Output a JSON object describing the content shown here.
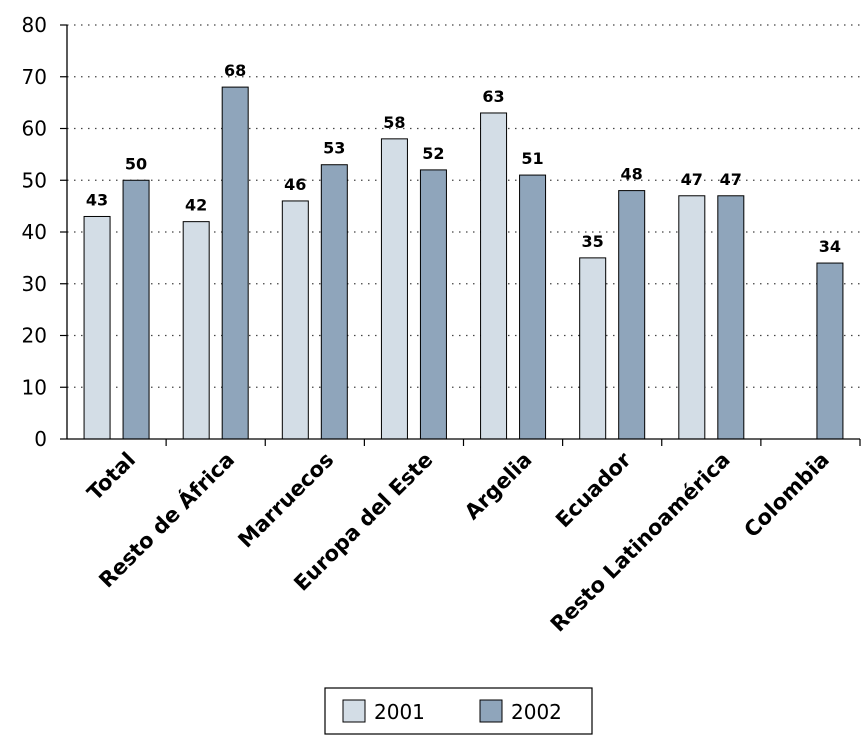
{
  "chart_data": {
    "type": "bar",
    "categories": [
      "Total",
      "Resto de África",
      "Marruecos",
      "Europa del Este",
      "Argelia",
      "Ecuador",
      "Resto Latinoamérica",
      "Colombia"
    ],
    "series": [
      {
        "name": "2001",
        "values": [
          43,
          42,
          46,
          58,
          63,
          35,
          47,
          null
        ],
        "labels": [
          "43",
          "42",
          "46",
          "58",
          "63",
          "35",
          "47",
          null
        ]
      },
      {
        "name": "2002",
        "values": [
          50,
          68,
          53,
          52,
          51,
          48,
          47,
          34
        ],
        "labels": [
          "50",
          "68",
          "53",
          "52",
          "51",
          "48",
          "47",
          "34"
        ]
      }
    ],
    "ylim": [
      0,
      80
    ],
    "yticks": [
      "0",
      "10",
      "20",
      "30",
      "40",
      "50",
      "60",
      "70",
      "80"
    ],
    "grid": true,
    "legend_position": "bottom-center",
    "colors": {
      "2001": "#d3dde6",
      "2002": "#8fa5bb"
    }
  }
}
